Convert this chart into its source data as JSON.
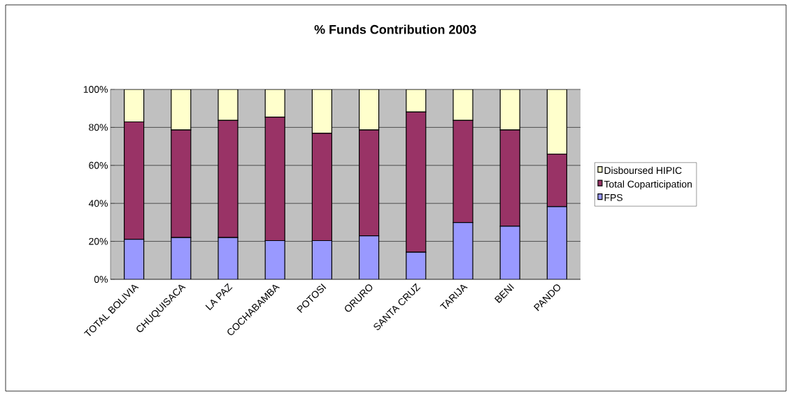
{
  "chart_data": {
    "type": "bar",
    "title": "% Funds Contribution 2003",
    "stacked": true,
    "categories": [
      "TOTAL BOLIVIA",
      "CHUQUISACA",
      "LA PAZ",
      "COCHABAMBA",
      "POTOSI",
      "ORURO",
      "SANTA CRUZ",
      "TARIJA",
      "BENI",
      "PANDO"
    ],
    "series": [
      {
        "name": "FPS",
        "color": "#9999ff",
        "values": [
          21.1,
          22,
          22,
          20.4,
          20.4,
          22.9,
          14.3,
          29.9,
          28,
          38.3
        ]
      },
      {
        "name": "Total Coparticipation",
        "color": "#993366",
        "values": [
          61.8,
          56.6,
          61.7,
          65,
          56.5,
          55.7,
          73.8,
          53.8,
          50.6,
          27.6
        ]
      },
      {
        "name": "Disboursed HIPIC",
        "color": "#ffffcc",
        "values": [
          17.1,
          21.4,
          16.3,
          14.6,
          23.1,
          21.4,
          11.9,
          16.3,
          21.4,
          34.1
        ]
      }
    ],
    "ylim": [
      0,
      100
    ],
    "yticks": [
      {
        "value": 0,
        "label": "0%"
      },
      {
        "value": 20,
        "label": "20%"
      },
      {
        "value": 40,
        "label": "40%"
      },
      {
        "value": 60,
        "label": "60%"
      },
      {
        "value": 80,
        "label": "80%"
      },
      {
        "value": 100,
        "label": "100%"
      }
    ],
    "grid": "y",
    "legend": "right"
  }
}
